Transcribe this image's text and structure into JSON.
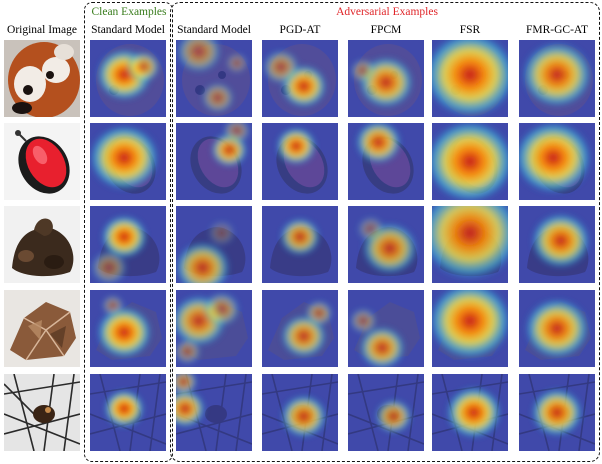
{
  "figure": {
    "groups": {
      "clean": {
        "label": "Clean Examples",
        "color": "#3a7d1e"
      },
      "adversarial": {
        "label": "Adversarial Examples",
        "color": "#e0262a"
      }
    },
    "columns": [
      {
        "key": "original",
        "label": "Original Image"
      },
      {
        "key": "clean_standard",
        "label": "Standard Model"
      },
      {
        "key": "adv_standard",
        "label": "Standard Model"
      },
      {
        "key": "pgd_at",
        "label": "PGD-AT"
      },
      {
        "key": "fpcm",
        "label": "FPCM"
      },
      {
        "key": "fsr",
        "label": "FSR"
      },
      {
        "key": "fmr_gc_at",
        "label": "FMR-GC-AT"
      }
    ],
    "rows": [
      {
        "key": "red-panda"
      },
      {
        "key": "punching-bag"
      },
      {
        "key": "bear-object"
      },
      {
        "key": "crumpled-object"
      },
      {
        "key": "bird-in-branches"
      }
    ]
  }
}
